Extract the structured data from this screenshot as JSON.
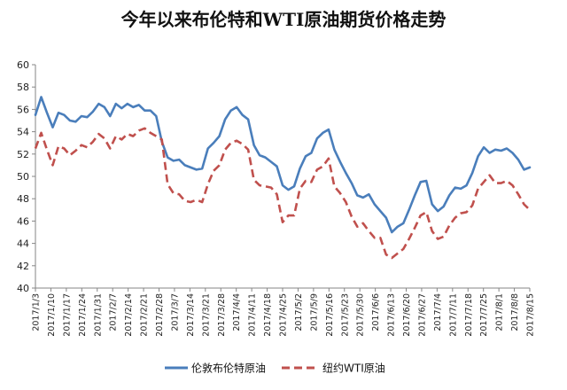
{
  "chart_data": {
    "type": "line",
    "title": "今年以来布伦特和WTI原油期货价格走势",
    "xlabel": "",
    "ylabel": "",
    "ylim": [
      40,
      60
    ],
    "yticks": [
      40,
      42,
      44,
      46,
      48,
      50,
      52,
      54,
      56,
      58,
      60
    ],
    "grid": false,
    "legend_position": "bottom",
    "x_tick_labels": [
      "2017/1/3",
      "2017/1/10",
      "2017/1/17",
      "2017/1/24",
      "2017/1/31",
      "2017/2/7",
      "2017/2/14",
      "2017/2/21",
      "2017/2/28",
      "2017/3/7",
      "2017/3/14",
      "2017/3/21",
      "2017/3/28",
      "2017/4/4",
      "2017/4/11",
      "2017/4/18",
      "2017/4/25",
      "2017/5/2",
      "2017/5/9",
      "2017/5/16",
      "2017/5/23",
      "2017/5/30",
      "2017/6/6",
      "2017/6/13",
      "2017/6/20",
      "2017/6/27",
      "2017/7/4",
      "2017/7/11",
      "2017/7/18",
      "2017/7/25",
      "2017/8/1",
      "2017/8/8",
      "2017/8/15"
    ],
    "series": [
      {
        "name": "伦敦布伦特原油",
        "color": "#4a7ebb",
        "style": "solid",
        "values": [
          55.5,
          57.1,
          55.7,
          54.4,
          55.7,
          55.5,
          55.0,
          54.9,
          55.4,
          55.3,
          55.8,
          56.5,
          56.2,
          55.4,
          56.5,
          56.1,
          56.5,
          56.2,
          56.4,
          55.9,
          55.9,
          55.4,
          53.1,
          51.7,
          51.4,
          51.5,
          51.0,
          50.8,
          50.6,
          50.7,
          52.5,
          53.0,
          53.6,
          55.1,
          55.9,
          56.2,
          55.5,
          55.1,
          52.8,
          51.9,
          51.7,
          51.3,
          50.9,
          49.2,
          48.8,
          49.1,
          50.7,
          51.8,
          52.1,
          53.4,
          53.9,
          54.2,
          52.4,
          51.3,
          50.3,
          49.4,
          48.3,
          48.1,
          48.4,
          47.5,
          46.9,
          46.3,
          45.0,
          45.5,
          45.8,
          47.0,
          48.3,
          49.5,
          49.6,
          47.5,
          46.9,
          47.3,
          48.3,
          49.0,
          48.9,
          49.2,
          50.3,
          51.8,
          52.6,
          52.1,
          52.4,
          52.3,
          52.5,
          52.1,
          51.5,
          50.6,
          50.8
        ]
      },
      {
        "name": "纽约WTI原油",
        "color": "#c0504d",
        "style": "dashed",
        "values": [
          52.5,
          53.9,
          52.4,
          51.0,
          52.7,
          52.5,
          51.9,
          52.3,
          52.8,
          52.6,
          53.1,
          53.8,
          53.4,
          52.5,
          53.6,
          53.3,
          53.8,
          53.6,
          54.1,
          54.3,
          53.9,
          53.6,
          53.3,
          49.3,
          48.5,
          48.4,
          47.8,
          47.7,
          47.9,
          47.7,
          49.3,
          50.5,
          51.0,
          52.4,
          53.0,
          53.2,
          52.9,
          52.4,
          49.7,
          49.2,
          49.1,
          49.0,
          48.4,
          45.9,
          46.5,
          46.5,
          48.9,
          49.6,
          49.5,
          50.6,
          50.9,
          51.6,
          49.1,
          48.5,
          47.7,
          46.4,
          45.5,
          45.8,
          45.1,
          44.5,
          44.5,
          43.0,
          42.7,
          43.1,
          43.5,
          44.4,
          45.4,
          46.5,
          46.8,
          45.1,
          44.4,
          44.6,
          45.6,
          46.3,
          46.7,
          46.8,
          47.4,
          48.9,
          49.5,
          50.1,
          49.4,
          49.4,
          49.6,
          49.2,
          48.4,
          47.5,
          47.0
        ]
      }
    ]
  }
}
